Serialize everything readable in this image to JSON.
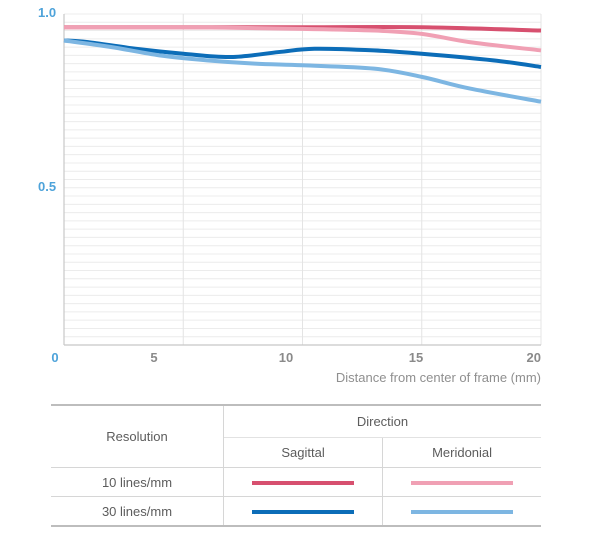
{
  "chart_data": {
    "type": "line",
    "title": "",
    "xlabel": "Distance from center of frame (mm)",
    "ylabel": "",
    "xlim": [
      0,
      20
    ],
    "ylim": [
      0,
      1.0
    ],
    "x_ticks": [
      "0",
      "5",
      "10",
      "15",
      "20"
    ],
    "y_ticks": [
      "0.5",
      "1.0"
    ],
    "grid": true,
    "series": [
      {
        "name": "10 lines/mm Sagittal",
        "color": "#d7506f",
        "x": [
          0,
          5,
          10,
          15,
          20
        ],
        "y": [
          0.96,
          0.96,
          0.96,
          0.96,
          0.95
        ]
      },
      {
        "name": "10 lines/mm Meridonial",
        "color": "#f0a0b4",
        "x": [
          0,
          5,
          10,
          13,
          15,
          17,
          20
        ],
        "y": [
          0.96,
          0.96,
          0.955,
          0.95,
          0.94,
          0.915,
          0.89
        ]
      },
      {
        "name": "30 lines/mm Sagittal",
        "color": "#0c6db8",
        "x": [
          0,
          1,
          3,
          5,
          7,
          9,
          10.5,
          13,
          15,
          18,
          20
        ],
        "y": [
          0.92,
          0.915,
          0.895,
          0.88,
          0.87,
          0.885,
          0.895,
          0.89,
          0.88,
          0.86,
          0.84
        ]
      },
      {
        "name": "30 lines/mm Meridonial",
        "color": "#7db6e2",
        "x": [
          0,
          2,
          4,
          6,
          8,
          10,
          13,
          15,
          17,
          20
        ],
        "y": [
          0.92,
          0.9,
          0.875,
          0.86,
          0.85,
          0.845,
          0.835,
          0.81,
          0.775,
          0.735
        ]
      }
    ]
  },
  "legend": {
    "resolution_header": "Resolution",
    "direction_header": "Direction",
    "sagittal_header": "Sagittal",
    "meridonial_header": "Meridonial",
    "rows": [
      {
        "label": "10 lines/mm",
        "sagittal_color": "#d7506f",
        "meridonial_color": "#f0a0b4"
      },
      {
        "label": "30 lines/mm",
        "sagittal_color": "#0c6db8",
        "meridonial_color": "#7db6e2"
      }
    ]
  }
}
